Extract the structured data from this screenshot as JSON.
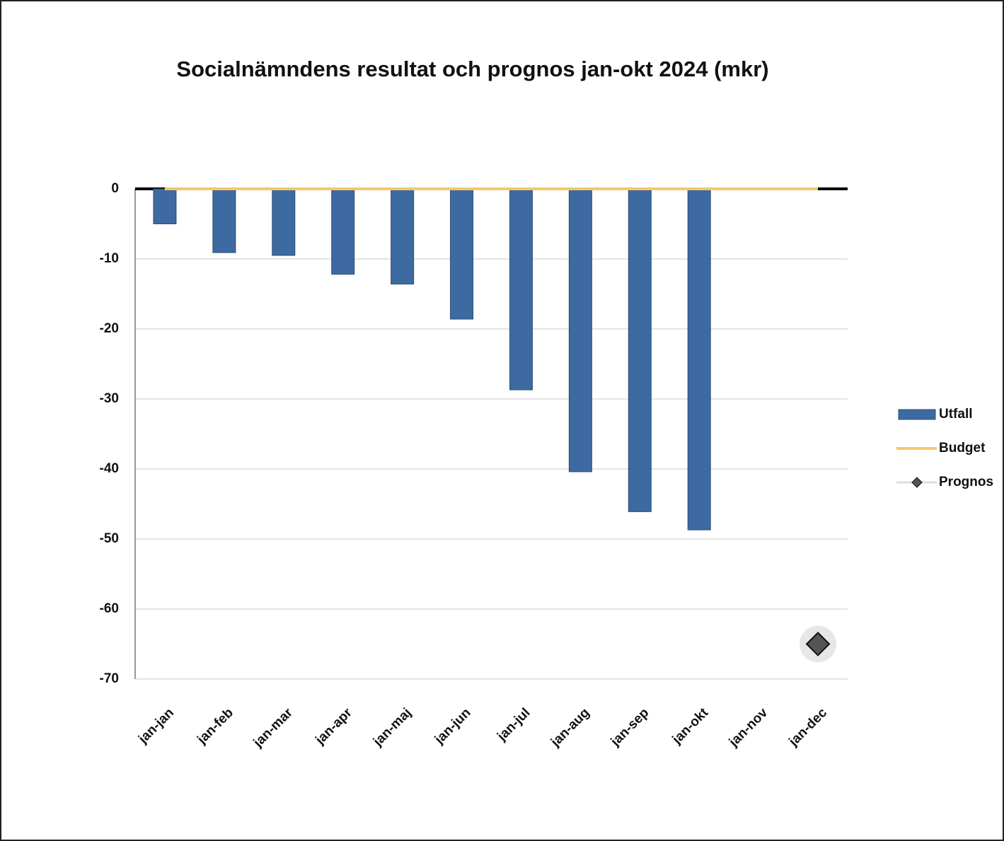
{
  "chart_data": {
    "type": "bar",
    "title": "Socialnämndens resultat och prognos  jan-okt 2024 (mkr)",
    "categories": [
      "jan-jan",
      "jan-feb",
      "jan-mar",
      "jan-apr",
      "jan-maj",
      "jan-jun",
      "jan-jul",
      "jan-aug",
      "jan-sep",
      "jan-okt",
      "jan-nov",
      "jan-dec"
    ],
    "series": [
      {
        "name": "Utfall",
        "type": "bar",
        "color": "#3d6aa0",
        "values": [
          -5,
          -9.1,
          -9.5,
          -12.2,
          -13.6,
          -18.6,
          -28.7,
          -40.4,
          -46.1,
          -48.7,
          null,
          null
        ]
      },
      {
        "name": "Budget",
        "type": "line",
        "color": "#f5c96a",
        "values": [
          0,
          0,
          0,
          0,
          0,
          0,
          0,
          0,
          0,
          0,
          0,
          0
        ]
      },
      {
        "name": "Prognos",
        "type": "scatter",
        "color": "#555555",
        "values": [
          null,
          null,
          null,
          null,
          null,
          null,
          null,
          null,
          null,
          null,
          null,
          -65
        ]
      }
    ],
    "ylim": [
      -70,
      0
    ],
    "yticks": [
      0,
      -10,
      -20,
      -30,
      -40,
      -50,
      -60,
      -70
    ],
    "grid": true,
    "legend": "right"
  }
}
